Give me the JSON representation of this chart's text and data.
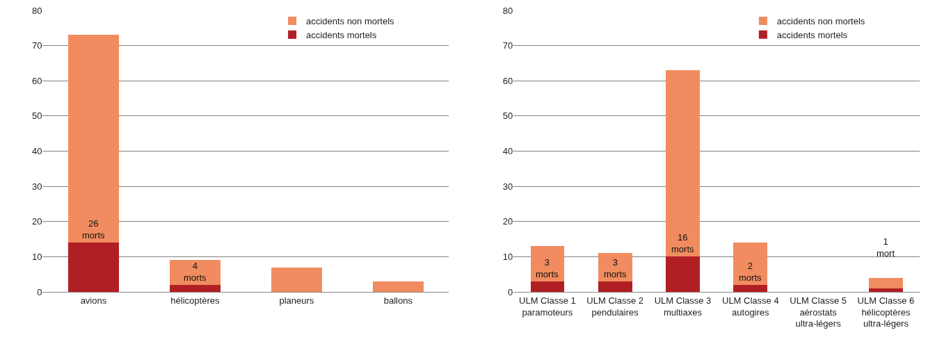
{
  "chart_data": [
    {
      "type": "bar",
      "stacked": true,
      "categories": [
        "avions",
        "hélicoptères",
        "planeurs",
        "ballons"
      ],
      "ylim": [
        0,
        80
      ],
      "yticks": [
        0,
        10,
        20,
        30,
        40,
        50,
        60,
        70,
        80
      ],
      "grid": "y",
      "legend": "top right",
      "series": [
        {
          "name": "accidents mortels",
          "color": "#b01f24",
          "values": [
            14,
            2,
            0,
            0
          ]
        },
        {
          "name": "accidents non mortels",
          "color": "#f08c5f",
          "values": [
            59,
            7,
            7,
            3
          ]
        }
      ],
      "annotations": [
        "26\nmorts",
        "4\nmorts"
      ]
    },
    {
      "type": "bar",
      "stacked": true,
      "categories": [
        "ULM Classe 1\nparamoteurs",
        "ULM Classe 2\npendulaires",
        "ULM Classe 3\nmultiaxes",
        "ULM Classe 4\nautogires",
        "ULM Classe 5\naérostats\nultra-légers",
        "ULM Classe 6\nhélicoptères\nultra-légers"
      ],
      "ylim": [
        0,
        80
      ],
      "yticks": [
        0,
        10,
        20,
        30,
        40,
        50,
        60,
        70,
        80
      ],
      "grid": "y",
      "legend": "top right",
      "series": [
        {
          "name": "accidents mortels",
          "color": "#b01f24",
          "values": [
            3,
            3,
            10,
            2,
            0,
            1
          ]
        },
        {
          "name": "accidents non mortels",
          "color": "#f08c5f",
          "values": [
            10,
            8,
            53,
            12,
            0,
            3
          ]
        }
      ],
      "annotations": [
        "3\nmorts",
        "3\nmorts",
        "16\nmorts",
        "2\nmorts",
        "1\nmort"
      ]
    }
  ]
}
